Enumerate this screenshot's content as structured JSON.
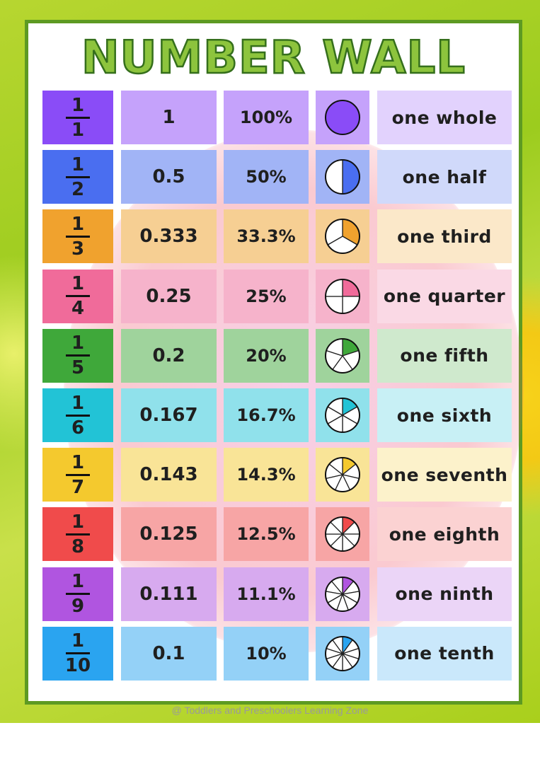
{
  "title": "NUMBER WALL",
  "credit": "@ Toddlers and Preschoolers Learning Zone",
  "watermark_text": "TODDLERS AND PRESCHOOLERS LEARNING ZONE",
  "rows": [
    {
      "numerator": "1",
      "denominator": "1",
      "decimal": "1",
      "percent": "100%",
      "words": "one whole",
      "parts": 1,
      "color": "#8a4cf7",
      "light": "#c5a2fb",
      "lighter": "#e2d2fd"
    },
    {
      "numerator": "1",
      "denominator": "2",
      "decimal": "0.5",
      "percent": "50%",
      "words": "one half",
      "parts": 2,
      "color": "#4a6ef0",
      "light": "#a1b4f6",
      "lighter": "#d0d9fa"
    },
    {
      "numerator": "1",
      "denominator": "3",
      "decimal": "0.333",
      "percent": "33.3%",
      "words": "one third",
      "parts": 3,
      "color": "#f0a22e",
      "light": "#f6cf93",
      "lighter": "#fbe8c9"
    },
    {
      "numerator": "1",
      "denominator": "4",
      "decimal": "0.25",
      "percent": "25%",
      "words": "one quarter",
      "parts": 4,
      "color": "#f06b9a",
      "light": "#f6b3cb",
      "lighter": "#fad9e5"
    },
    {
      "numerator": "1",
      "denominator": "5",
      "decimal": "0.2",
      "percent": "20%",
      "words": "one fifth",
      "parts": 5,
      "color": "#3fa83a",
      "light": "#9fd39c",
      "lighter": "#cfe9cd"
    },
    {
      "numerator": "1",
      "denominator": "6",
      "decimal": "0.167",
      "percent": "16.7%",
      "words": "one sixth",
      "parts": 6,
      "color": "#22c3d6",
      "light": "#90e1eb",
      "lighter": "#c8f0f5"
    },
    {
      "numerator": "1",
      "denominator": "7",
      "decimal": "0.143",
      "percent": "14.3%",
      "words": "one seventh",
      "parts": 7,
      "color": "#f4c92e",
      "light": "#f9e497",
      "lighter": "#fcf2cb"
    },
    {
      "numerator": "1",
      "denominator": "8",
      "decimal": "0.125",
      "percent": "12.5%",
      "words": "one eighth",
      "parts": 8,
      "color": "#f04b4b",
      "light": "#f7a5a5",
      "lighter": "#fbd2d2"
    },
    {
      "numerator": "1",
      "denominator": "9",
      "decimal": "0.111",
      "percent": "11.1%",
      "words": "one ninth",
      "parts": 9,
      "color": "#b055e0",
      "light": "#d7aaef",
      "lighter": "#ebd5f7"
    },
    {
      "numerator": "1",
      "denominator": "10",
      "decimal": "0.1",
      "percent": "10%",
      "words": "one tenth",
      "parts": 10,
      "color": "#2aa4f0",
      "light": "#94d1f7",
      "lighter": "#cae8fb"
    }
  ]
}
